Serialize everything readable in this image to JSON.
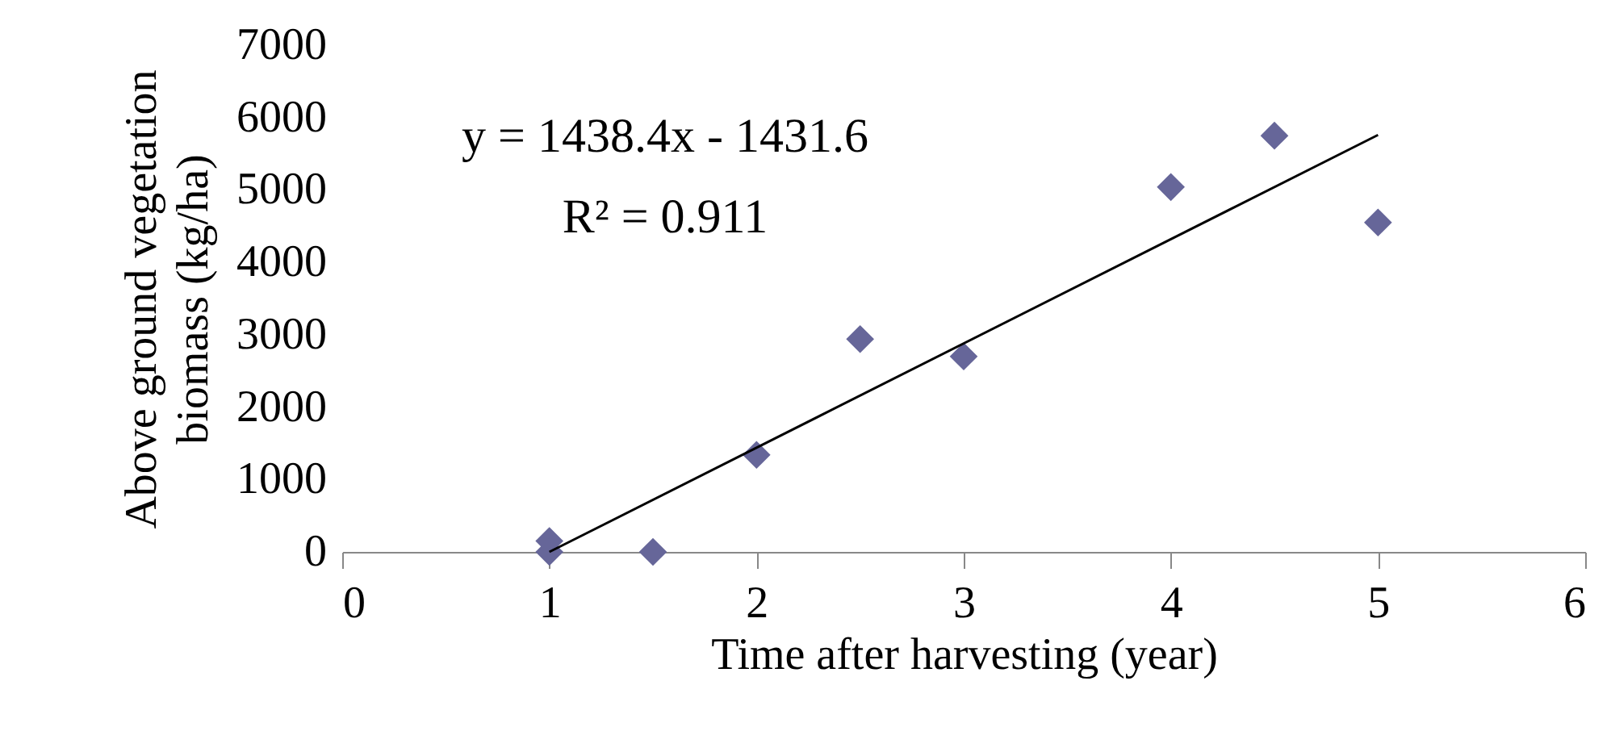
{
  "chart_data": {
    "type": "scatter",
    "xlabel": "Time after harvesting (year)",
    "ylabel": "Above ground vegetation\nbiomass (kg/ha)",
    "xlim": [
      0,
      6
    ],
    "xticks": [
      0,
      1,
      2,
      3,
      4,
      5,
      6
    ],
    "ylim": [
      0,
      7000
    ],
    "yticks": [
      0,
      1000,
      2000,
      3000,
      4000,
      5000,
      6000,
      7000
    ],
    "grid": false,
    "series": [
      {
        "color": "#666699",
        "marker": "diamond",
        "x": [
          1,
          1,
          1.5,
          2,
          2.5,
          3,
          4,
          4.5,
          5
        ],
        "values": [
          150,
          0,
          0,
          1340,
          2940,
          2700,
          5040,
          5750,
          4550
        ]
      },
      {
        "type": "line",
        "color": "#000000",
        "marker": "none",
        "x": [
          1,
          5
        ],
        "values": [
          0,
          5760
        ]
      }
    ],
    "annotations": [
      "y = 1438.4x - 1431.6",
      "R² = 0.911"
    ]
  }
}
